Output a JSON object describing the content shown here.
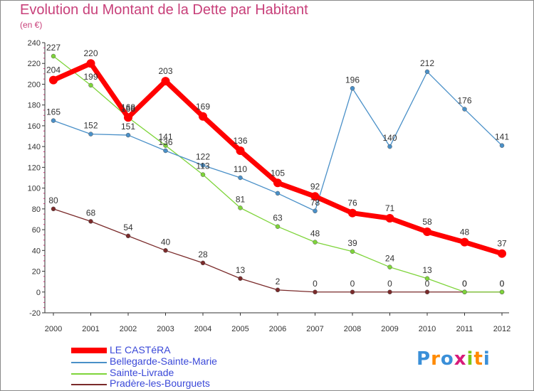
{
  "title": "Evolution du Montant de la Dette par Habitant",
  "subtitle": "(en €)",
  "chart_data": {
    "type": "line",
    "x": [
      "2000",
      "2001",
      "2002",
      "2003",
      "2004",
      "2005",
      "2006",
      "2007",
      "2008",
      "2009",
      "2010",
      "2011",
      "2012"
    ],
    "ylim": [
      -20,
      240
    ],
    "yticks": [
      -20,
      0,
      20,
      40,
      60,
      80,
      100,
      120,
      140,
      160,
      180,
      200,
      220,
      240
    ],
    "grid": false,
    "legend": "bottom-left",
    "series": [
      {
        "name": "LE CASTéRA",
        "color": "#ff0000",
        "values": [
          204,
          220,
          168,
          203,
          169,
          136,
          105,
          92,
          76,
          71,
          58,
          48,
          37
        ]
      },
      {
        "name": "Bellegarde-Sainte-Marie",
        "color": "#4a90c8",
        "values": [
          165,
          152,
          151,
          136,
          122,
          110,
          95,
          78,
          196,
          140,
          212,
          176,
          141
        ],
        "labels": [
          "165",
          "152",
          "151",
          "136",
          "122",
          "110",
          "",
          "78",
          "196",
          "140",
          "212",
          "176",
          "141"
        ]
      },
      {
        "name": "Sainte-Livrade",
        "color": "#7ed43a",
        "values": [
          227,
          199,
          168,
          141,
          113,
          81,
          63,
          48,
          39,
          24,
          13,
          0,
          0
        ]
      },
      {
        "name": "Pradère-les-Bourguets",
        "color": "#7a2a2a",
        "values": [
          80,
          68,
          54,
          40,
          28,
          13,
          2,
          0,
          0,
          0,
          0,
          0,
          0
        ]
      }
    ]
  },
  "logo": {
    "letters": [
      "P",
      "r",
      "o",
      "x",
      "i",
      "t",
      "i"
    ],
    "colors": [
      "#3a8fd8",
      "#ff8a00",
      "#3a8fd8",
      "#d81a7a",
      "#7ac81a",
      "#ff8a00",
      "#3a8fd8"
    ]
  }
}
